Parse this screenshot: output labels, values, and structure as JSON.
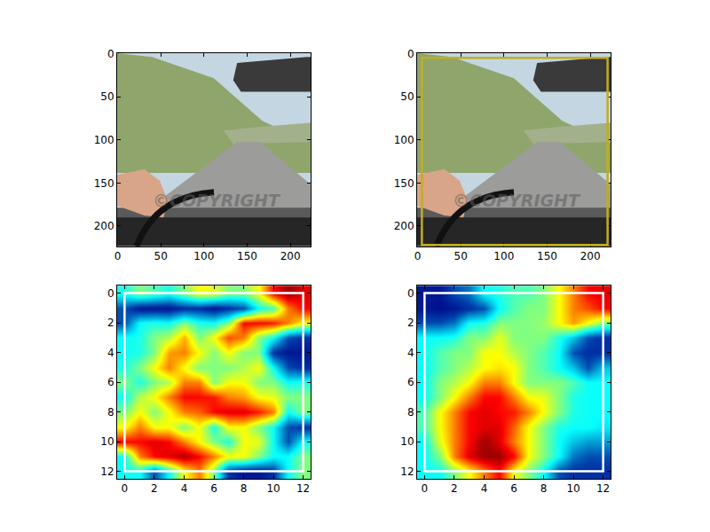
{
  "chart_data": [
    {
      "type": "image",
      "xlim": [
        -0.5,
        223.5
      ],
      "ylim": [
        223.5,
        -0.5
      ],
      "xticks": [
        0,
        50,
        100,
        150,
        200
      ],
      "yticks": [
        0,
        50,
        100,
        150,
        200
      ],
      "annotations": [
        {
          "text": "©COPYRIGHT",
          "x": 115,
          "y": 170
        }
      ]
    },
    {
      "type": "image",
      "xlim": [
        -0.5,
        223.5
      ],
      "ylim": [
        223.5,
        -0.5
      ],
      "xticks": [
        0,
        50,
        100,
        150,
        200
      ],
      "yticks": [
        0,
        50,
        100,
        150,
        200
      ],
      "annotations": [
        {
          "text": "©COPYRIGHT",
          "x": 115,
          "y": 170
        }
      ],
      "boxes": [
        {
          "x0": 5,
          "y0": 5,
          "x1": 220,
          "y1": 222,
          "color": "#c2ae1c"
        }
      ]
    },
    {
      "type": "heatmap",
      "xlim": [
        -0.5,
        12.5
      ],
      "ylim": [
        12.5,
        -0.5
      ],
      "xticks": [
        0,
        2,
        4,
        6,
        8,
        10,
        12
      ],
      "yticks": [
        0,
        2,
        4,
        6,
        8,
        10,
        12
      ],
      "zlim": [
        0,
        1
      ],
      "cells": [
        [
          0.4,
          0.5,
          0.45,
          0.4,
          0.5,
          0.62,
          0.6,
          0.5,
          0.5,
          0.62,
          0.87,
          0.97,
          0.9
        ],
        [
          0.15,
          0.05,
          0.05,
          0.05,
          0.1,
          0.1,
          0.05,
          0.1,
          0.15,
          0.38,
          0.45,
          0.75,
          0.87
        ],
        [
          0.15,
          0.38,
          0.4,
          0.38,
          0.5,
          0.4,
          0.38,
          0.5,
          0.87,
          0.87,
          0.85,
          0.75,
          0.62
        ],
        [
          0.38,
          0.4,
          0.5,
          0.55,
          0.7,
          0.5,
          0.62,
          0.8,
          0.75,
          0.5,
          0.38,
          0.15,
          0.1
        ],
        [
          0.38,
          0.4,
          0.5,
          0.72,
          0.75,
          0.62,
          0.5,
          0.62,
          0.5,
          0.5,
          0.1,
          0.05,
          0.05
        ],
        [
          0.4,
          0.5,
          0.62,
          0.75,
          0.62,
          0.5,
          0.5,
          0.5,
          0.55,
          0.62,
          0.38,
          0.15,
          0.1
        ],
        [
          0.5,
          0.4,
          0.5,
          0.55,
          0.75,
          0.75,
          0.5,
          0.62,
          0.62,
          0.5,
          0.5,
          0.38,
          0.4
        ],
        [
          0.38,
          0.55,
          0.62,
          0.75,
          0.87,
          0.87,
          0.85,
          0.75,
          0.72,
          0.62,
          0.6,
          0.5,
          0.5
        ],
        [
          0.5,
          0.62,
          0.5,
          0.62,
          0.75,
          0.78,
          0.87,
          0.9,
          0.9,
          0.85,
          0.75,
          0.38,
          0.5
        ],
        [
          0.62,
          0.75,
          0.62,
          0.62,
          0.5,
          0.62,
          0.4,
          0.62,
          0.62,
          0.5,
          0.38,
          0.15,
          0.1
        ],
        [
          0.87,
          0.87,
          0.9,
          0.87,
          0.75,
          0.62,
          0.5,
          0.4,
          0.62,
          0.6,
          0.38,
          0.15,
          0.38
        ],
        [
          0.38,
          0.75,
          0.87,
          0.9,
          0.95,
          0.87,
          0.75,
          0.62,
          0.62,
          0.5,
          0.38,
          0.38,
          0.5
        ],
        [
          0.38,
          0.38,
          0.15,
          0.38,
          0.62,
          0.75,
          0.5,
          0.1,
          0.05,
          0.05,
          0.1,
          0.38,
          0.5
        ]
      ],
      "boxes": [
        {
          "x0": 0,
          "y0": 0,
          "x1": 12,
          "y1": 12,
          "color": "#ffffff"
        }
      ]
    },
    {
      "type": "heatmap",
      "xlim": [
        -0.5,
        12.5
      ],
      "ylim": [
        12.5,
        -0.5
      ],
      "xticks": [
        0,
        2,
        4,
        6,
        8,
        10,
        12
      ],
      "yticks": [
        0,
        2,
        4,
        6,
        8,
        10,
        12
      ],
      "zlim": [
        0,
        1
      ],
      "cells": [
        [
          0.05,
          0.05,
          0.15,
          0.2,
          0.38,
          0.4,
          0.45,
          0.45,
          0.5,
          0.62,
          0.75,
          0.87,
          0.9
        ],
        [
          0.05,
          0.03,
          0.05,
          0.1,
          0.15,
          0.38,
          0.45,
          0.5,
          0.5,
          0.62,
          0.75,
          0.8,
          0.87
        ],
        [
          0.15,
          0.15,
          0.2,
          0.38,
          0.4,
          0.5,
          0.5,
          0.5,
          0.52,
          0.62,
          0.72,
          0.62,
          0.5
        ],
        [
          0.38,
          0.38,
          0.4,
          0.5,
          0.5,
          0.6,
          0.5,
          0.5,
          0.5,
          0.4,
          0.3,
          0.15,
          0.1
        ],
        [
          0.38,
          0.45,
          0.5,
          0.5,
          0.62,
          0.62,
          0.55,
          0.5,
          0.45,
          0.38,
          0.15,
          0.1,
          0.1
        ],
        [
          0.38,
          0.45,
          0.5,
          0.55,
          0.62,
          0.65,
          0.62,
          0.5,
          0.45,
          0.38,
          0.3,
          0.15,
          0.3
        ],
        [
          0.38,
          0.5,
          0.55,
          0.62,
          0.75,
          0.75,
          0.62,
          0.5,
          0.5,
          0.5,
          0.45,
          0.38,
          0.38
        ],
        [
          0.38,
          0.5,
          0.62,
          0.75,
          0.87,
          0.87,
          0.75,
          0.62,
          0.6,
          0.5,
          0.4,
          0.38,
          0.38
        ],
        [
          0.45,
          0.62,
          0.75,
          0.87,
          0.9,
          0.87,
          0.85,
          0.75,
          0.62,
          0.5,
          0.4,
          0.38,
          0.38
        ],
        [
          0.45,
          0.62,
          0.75,
          0.87,
          0.9,
          0.9,
          0.78,
          0.62,
          0.5,
          0.4,
          0.38,
          0.38,
          0.35
        ],
        [
          0.38,
          0.6,
          0.75,
          0.87,
          0.97,
          0.9,
          0.75,
          0.62,
          0.5,
          0.38,
          0.3,
          0.25,
          0.25
        ],
        [
          0.38,
          0.5,
          0.75,
          0.9,
          0.97,
          0.97,
          0.87,
          0.62,
          0.5,
          0.38,
          0.2,
          0.15,
          0.15
        ],
        [
          0.38,
          0.38,
          0.5,
          0.62,
          0.75,
          0.87,
          0.62,
          0.5,
          0.38,
          0.15,
          0.1,
          0.1,
          0.1
        ]
      ],
      "boxes": [
        {
          "x0": 0,
          "y0": 0,
          "x1": 12,
          "y1": 12,
          "color": "#ffffff"
        }
      ]
    }
  ]
}
